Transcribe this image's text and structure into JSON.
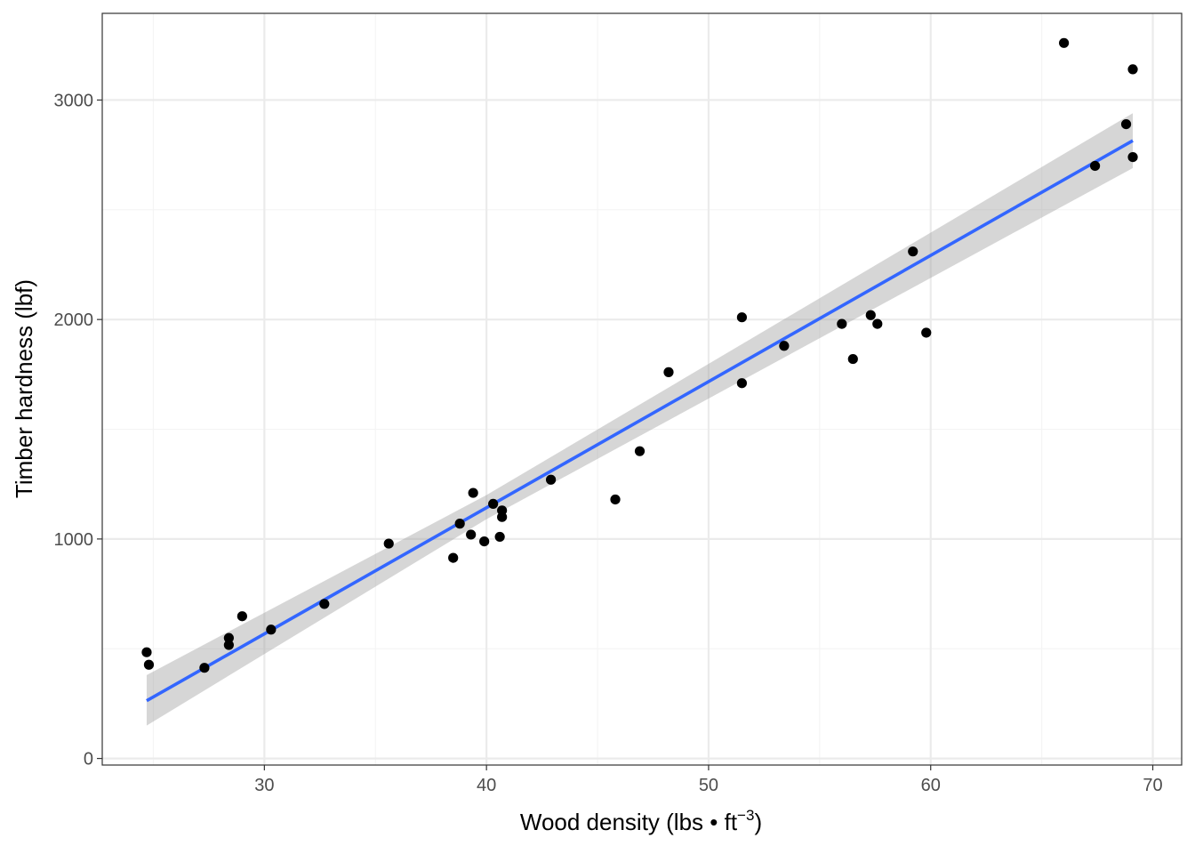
{
  "chart_data": {
    "type": "scatter",
    "title": "",
    "xlabel": {
      "main": "Wood density (lbs • ft",
      "superscript": "−3",
      "close": ")"
    },
    "ylabel": "Timber hardness (lbf)",
    "xlim": [
      22.7,
      71.3
    ],
    "ylim": [
      -30,
      3395
    ],
    "x_ticks": [
      30,
      40,
      50,
      60,
      70
    ],
    "x_tick_labels": [
      "30",
      "40",
      "50",
      "60",
      "70"
    ],
    "y_ticks": [
      0,
      1000,
      2000,
      3000
    ],
    "y_tick_labels": [
      "0",
      "1000",
      "2000",
      "3000"
    ],
    "x_minor_ticks": [
      25,
      35,
      45,
      55,
      65
    ],
    "y_minor_ticks": [
      500,
      1500,
      2500
    ],
    "grid": true,
    "theme": "bw",
    "points": [
      {
        "x": 24.7,
        "y": 484
      },
      {
        "x": 24.8,
        "y": 427
      },
      {
        "x": 27.3,
        "y": 413
      },
      {
        "x": 28.4,
        "y": 517
      },
      {
        "x": 28.4,
        "y": 549
      },
      {
        "x": 29.0,
        "y": 648
      },
      {
        "x": 30.3,
        "y": 587
      },
      {
        "x": 32.7,
        "y": 704
      },
      {
        "x": 35.6,
        "y": 979
      },
      {
        "x": 38.5,
        "y": 914
      },
      {
        "x": 38.8,
        "y": 1070
      },
      {
        "x": 39.3,
        "y": 1020
      },
      {
        "x": 39.4,
        "y": 1210
      },
      {
        "x": 39.9,
        "y": 989
      },
      {
        "x": 40.3,
        "y": 1160
      },
      {
        "x": 40.6,
        "y": 1010
      },
      {
        "x": 40.7,
        "y": 1100
      },
      {
        "x": 40.7,
        "y": 1130
      },
      {
        "x": 42.9,
        "y": 1270
      },
      {
        "x": 45.8,
        "y": 1180
      },
      {
        "x": 46.9,
        "y": 1400
      },
      {
        "x": 48.2,
        "y": 1760
      },
      {
        "x": 51.5,
        "y": 1710
      },
      {
        "x": 51.5,
        "y": 2010
      },
      {
        "x": 53.4,
        "y": 1880
      },
      {
        "x": 56.0,
        "y": 1980
      },
      {
        "x": 56.5,
        "y": 1820
      },
      {
        "x": 57.3,
        "y": 2020
      },
      {
        "x": 57.6,
        "y": 1980
      },
      {
        "x": 59.2,
        "y": 2310
      },
      {
        "x": 59.8,
        "y": 1940
      },
      {
        "x": 66.0,
        "y": 3260
      },
      {
        "x": 67.4,
        "y": 2700
      },
      {
        "x": 68.8,
        "y": 2890
      },
      {
        "x": 69.1,
        "y": 2740
      },
      {
        "x": 69.1,
        "y": 3140
      }
    ],
    "fit": {
      "method": "linear",
      "x": [
        24.7,
        69.1
      ],
      "y": [
        263,
        2815
      ],
      "color": "#3366FF",
      "ribbon": {
        "x": [
          24.7,
          40,
          69.1
        ],
        "lower": [
          150,
          1090,
          2690
        ],
        "upper": [
          380,
          1200,
          2940
        ],
        "color": "#999999"
      }
    },
    "colors": {
      "points": "#000000",
      "panel_border": "#333333",
      "grid_major": "#ebebeb",
      "grid_minor": "#f4f4f4"
    }
  }
}
